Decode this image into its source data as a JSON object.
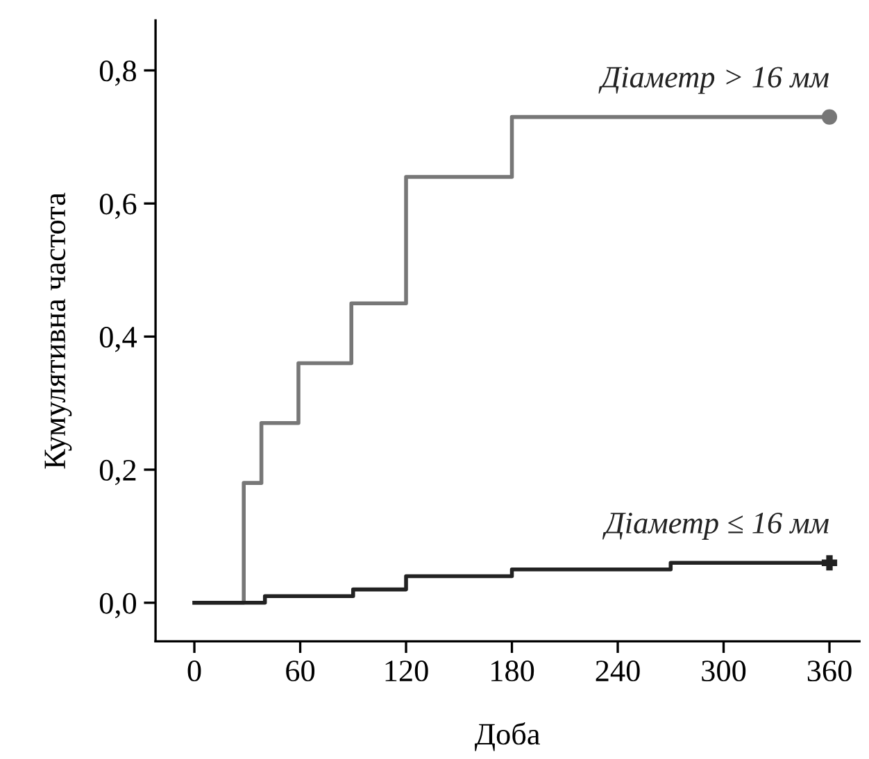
{
  "chart_data": {
    "type": "step",
    "xlabel": "Доба",
    "ylabel": "Кумулятивна частота",
    "xlim": [
      -22,
      377
    ],
    "ylim": [
      -0.058,
      0.875
    ],
    "xticks": [
      0,
      60,
      120,
      180,
      240,
      300,
      360
    ],
    "yticks": [
      {
        "value": 0,
        "label": "0,0"
      },
      {
        "value": 0.2,
        "label": "0,2"
      },
      {
        "value": 0.4,
        "label": "0,4"
      },
      {
        "value": 0.6,
        "label": "0,6"
      },
      {
        "value": 0.8,
        "label": "0,8"
      }
    ],
    "grid": false,
    "legend": false,
    "series": [
      {
        "name": "Діаметр > 16 мм",
        "color": "#777777",
        "x": [
          0,
          28,
          38,
          59,
          89,
          120,
          180,
          360
        ],
        "values": [
          0,
          0.18,
          0.27,
          0.36,
          0.45,
          0.64,
          0.73,
          0.73
        ]
      },
      {
        "name": "Діаметр ≤ 16 мм",
        "color": "#222222",
        "x": [
          0,
          40,
          90,
          120,
          180,
          270,
          360
        ],
        "values": [
          0,
          0.01,
          0.02,
          0.04,
          0.05,
          0.06,
          0.06
        ]
      }
    ]
  }
}
